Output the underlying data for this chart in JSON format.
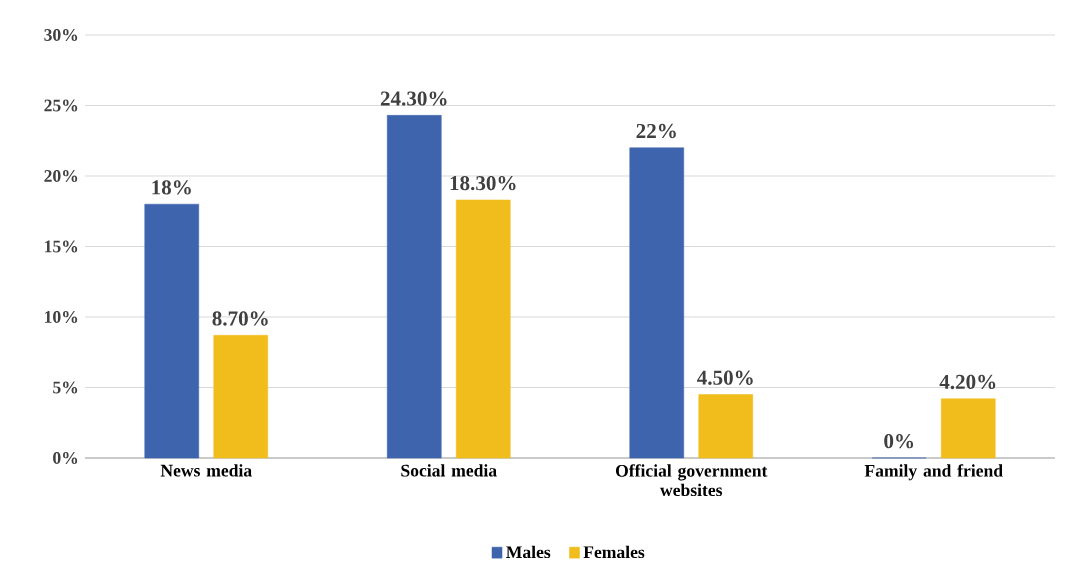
{
  "chart_data": {
    "type": "bar",
    "categories": [
      "News media",
      "Social media",
      "Official government websites",
      "Family and friend"
    ],
    "series": [
      {
        "name": "Males",
        "color": "#3d64ad",
        "values": [
          18,
          24.3,
          22,
          0
        ],
        "value_labels": [
          "18%",
          "24.30%",
          "22%",
          "0%"
        ]
      },
      {
        "name": "Females",
        "color": "#f0bd1c",
        "values": [
          8.7,
          18.3,
          4.5,
          4.2
        ],
        "value_labels": [
          "8.70%",
          "18.30%",
          "4.50%",
          "4.20%"
        ]
      }
    ],
    "ylim": [
      0,
      30
    ],
    "yticks": [
      {
        "value": 0,
        "label": "0%"
      },
      {
        "value": 5,
        "label": "5%"
      },
      {
        "value": 10,
        "label": "10%"
      },
      {
        "value": 15,
        "label": "15%"
      },
      {
        "value": 20,
        "label": "20%"
      },
      {
        "value": 25,
        "label": "25%"
      },
      {
        "value": 30,
        "label": "30%"
      }
    ],
    "grid": "y",
    "legend": "bottom"
  }
}
